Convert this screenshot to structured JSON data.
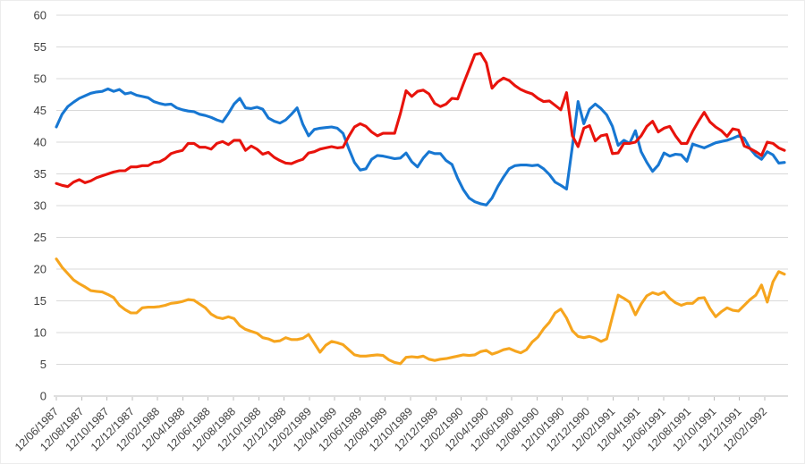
{
  "chart_data": {
    "type": "line",
    "title": "",
    "xlabel": "",
    "ylabel": "",
    "ylim": [
      0,
      60
    ],
    "y_ticks": [
      0,
      5,
      10,
      15,
      20,
      25,
      30,
      35,
      40,
      45,
      50,
      55,
      60
    ],
    "grid": "horizontal",
    "legend_position": "none",
    "x_tick_labels": [
      "12/06/1987",
      "12/08/1987",
      "12/10/1987",
      "12/12/1987",
      "12/02/1988",
      "12/04/1988",
      "12/06/1988",
      "12/08/1988",
      "12/10/1988",
      "12/12/1988",
      "12/02/1989",
      "12/04/1989",
      "12/06/1989",
      "12/08/1989",
      "12/10/1989",
      "12/12/1989",
      "12/02/1990",
      "12/04/1990",
      "12/06/1990",
      "12/08/1990",
      "12/10/1990",
      "12/12/1990",
      "12/02/1991",
      "12/04/1991",
      "12/06/1991",
      "12/08/1991",
      "12/10/1991",
      "12/12/1991",
      "12/02/1992"
    ],
    "colors": {
      "grid": "#d9d9d9",
      "axis": "#bdbdbd",
      "text": "#3f3f3f",
      "background": "#ffffff"
    },
    "series": [
      {
        "name": "blue",
        "color": "#1777d2",
        "values": [
          42.4,
          44.4,
          45.6,
          46.3,
          46.9,
          47.3,
          47.7,
          47.9,
          48.0,
          48.4,
          48.0,
          48.3,
          47.6,
          47.8,
          47.4,
          47.2,
          47.0,
          46.4,
          46.1,
          45.9,
          46.0,
          45.4,
          45.1,
          44.9,
          44.8,
          44.4,
          44.2,
          43.9,
          43.5,
          43.2,
          44.5,
          46.0,
          46.9,
          45.4,
          45.3,
          45.5,
          45.2,
          43.8,
          43.3,
          43.0,
          43.5,
          44.4,
          45.4,
          42.8,
          41.0,
          42.0,
          42.2,
          42.3,
          42.4,
          42.2,
          41.4,
          39.0,
          36.8,
          35.6,
          35.8,
          37.3,
          37.9,
          37.8,
          37.6,
          37.4,
          37.5,
          38.3,
          36.9,
          36.1,
          37.5,
          38.5,
          38.2,
          38.2,
          37.1,
          36.5,
          34.3,
          32.5,
          31.2,
          30.6,
          30.3,
          30.1,
          31.2,
          33.0,
          34.5,
          35.8,
          36.3,
          36.4,
          36.4,
          36.3,
          36.4,
          35.8,
          34.9,
          33.7,
          33.2,
          32.6,
          39.3,
          46.4,
          42.9,
          45.2,
          46.0,
          45.3,
          44.3,
          42.5,
          39.5,
          40.3,
          39.8,
          41.8,
          38.5,
          36.8,
          35.4,
          36.4,
          38.3,
          37.8,
          38.1,
          38.0,
          37.0,
          39.7,
          39.4,
          39.1,
          39.5,
          39.9,
          40.1,
          40.3,
          40.6,
          41.0,
          40.6,
          39.0,
          37.9,
          37.3,
          38.5,
          38.0,
          36.7,
          36.8
        ]
      },
      {
        "name": "red",
        "color": "#e8130c",
        "values": [
          33.5,
          33.2,
          33.0,
          33.7,
          34.1,
          33.6,
          33.9,
          34.4,
          34.7,
          35.0,
          35.3,
          35.5,
          35.5,
          36.1,
          36.1,
          36.3,
          36.3,
          36.8,
          36.9,
          37.4,
          38.2,
          38.5,
          38.7,
          39.8,
          39.8,
          39.2,
          39.2,
          38.9,
          39.8,
          40.1,
          39.6,
          40.3,
          40.3,
          38.7,
          39.4,
          38.9,
          38.1,
          38.4,
          37.6,
          37.1,
          36.7,
          36.6,
          37.0,
          37.3,
          38.3,
          38.5,
          38.9,
          39.1,
          39.3,
          39.1,
          39.2,
          40.9,
          42.4,
          42.9,
          42.5,
          41.6,
          41.0,
          41.4,
          41.4,
          41.4,
          44.5,
          48.1,
          47.2,
          48.0,
          48.2,
          47.6,
          46.1,
          45.6,
          46.0,
          46.9,
          46.8,
          49.2,
          51.5,
          53.8,
          54.0,
          52.5,
          48.5,
          49.5,
          50.1,
          49.7,
          48.9,
          48.3,
          47.9,
          47.6,
          46.9,
          46.4,
          46.5,
          45.8,
          45.1,
          47.8,
          41.0,
          39.3,
          42.2,
          42.6,
          40.2,
          41.0,
          41.2,
          38.2,
          38.3,
          39.8,
          39.8,
          40.0,
          41.0,
          42.5,
          43.3,
          41.6,
          42.2,
          42.5,
          41.0,
          39.8,
          39.8,
          41.7,
          43.3,
          44.7,
          43.2,
          42.4,
          41.8,
          40.9,
          42.1,
          41.9,
          39.4,
          39.0,
          38.5,
          37.9,
          40.0,
          39.8,
          39.1,
          38.7
        ]
      },
      {
        "name": "orange",
        "color": "#f6a51e",
        "values": [
          21.6,
          20.3,
          19.3,
          18.3,
          17.7,
          17.2,
          16.6,
          16.5,
          16.4,
          16.0,
          15.5,
          14.3,
          13.6,
          13.1,
          13.1,
          13.9,
          14.0,
          14.0,
          14.1,
          14.3,
          14.6,
          14.7,
          14.9,
          15.2,
          15.1,
          14.5,
          13.9,
          12.9,
          12.4,
          12.2,
          12.5,
          12.2,
          11.1,
          10.5,
          10.2,
          9.9,
          9.2,
          9.0,
          8.6,
          8.7,
          9.2,
          8.9,
          8.9,
          9.1,
          9.7,
          8.3,
          6.9,
          8.0,
          8.6,
          8.4,
          8.1,
          7.3,
          6.5,
          6.3,
          6.3,
          6.4,
          6.5,
          6.4,
          5.7,
          5.3,
          5.1,
          6.1,
          6.2,
          6.1,
          6.3,
          5.8,
          5.6,
          5.8,
          5.9,
          6.1,
          6.3,
          6.5,
          6.4,
          6.5,
          7.0,
          7.2,
          6.6,
          6.9,
          7.3,
          7.5,
          7.1,
          6.8,
          7.3,
          8.5,
          9.3,
          10.6,
          11.6,
          13.1,
          13.7,
          12.3,
          10.3,
          9.4,
          9.2,
          9.4,
          9.1,
          8.6,
          9.0,
          12.5,
          15.9,
          15.4,
          14.8,
          12.8,
          14.5,
          15.8,
          16.3,
          16.0,
          16.4,
          15.4,
          14.7,
          14.3,
          14.6,
          14.6,
          15.4,
          15.5,
          13.8,
          12.5,
          13.3,
          13.9,
          13.5,
          13.4,
          14.3,
          15.2,
          15.9,
          17.5,
          14.8,
          18.0,
          19.6,
          19.2
        ]
      }
    ]
  }
}
